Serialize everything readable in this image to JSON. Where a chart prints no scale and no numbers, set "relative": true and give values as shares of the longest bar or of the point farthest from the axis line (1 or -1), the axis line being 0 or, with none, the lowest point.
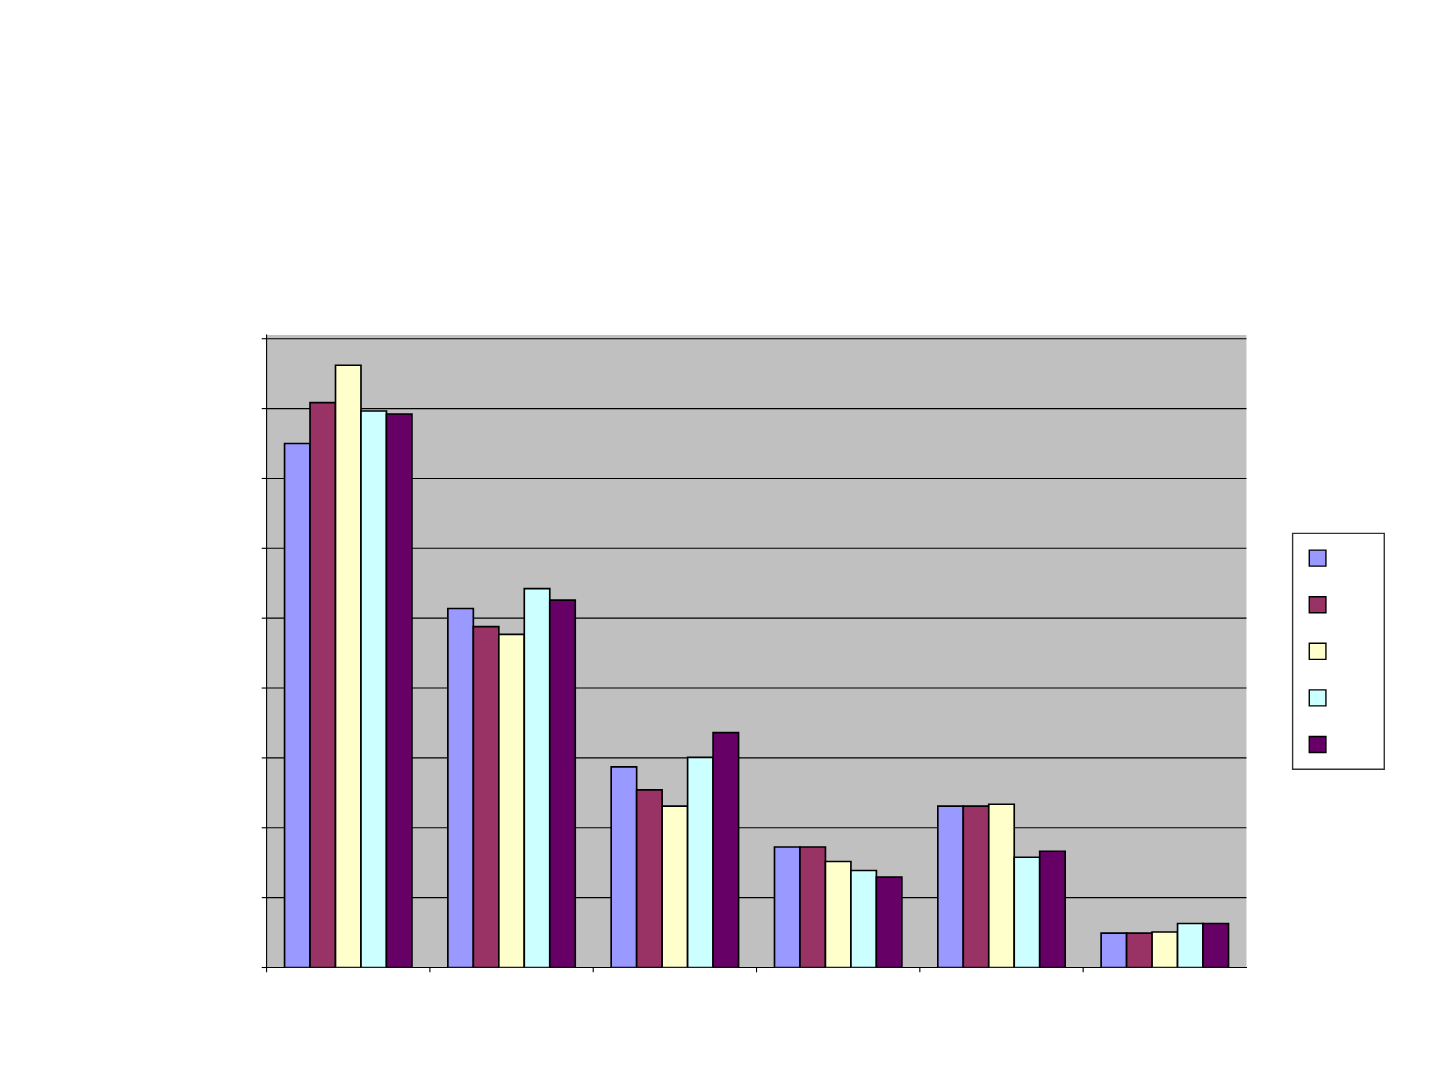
{
  "chart_data": {
    "type": "bar",
    "relative": true,
    "grid": "y",
    "categories": [
      null,
      null,
      null,
      null,
      null,
      null
    ],
    "series": [
      {
        "color": "#9999ff",
        "values": [
          0.87,
          0.596,
          0.333,
          0.2,
          0.268,
          0.057
        ]
      },
      {
        "color": "#993366",
        "values": [
          0.938,
          0.566,
          0.295,
          0.2,
          0.268,
          0.057
        ]
      },
      {
        "color": "#ffffcc",
        "values": [
          1,
          0.553,
          0.268,
          0.176,
          0.271,
          0.059
        ]
      },
      {
        "color": "#ccffff",
        "values": [
          0.924,
          0.629,
          0.349,
          0.161,
          0.183,
          0.073
        ]
      },
      {
        "color": "#660066",
        "values": [
          0.919,
          0.61,
          0.39,
          0.15,
          0.193,
          0.073
        ]
      }
    ]
  }
}
